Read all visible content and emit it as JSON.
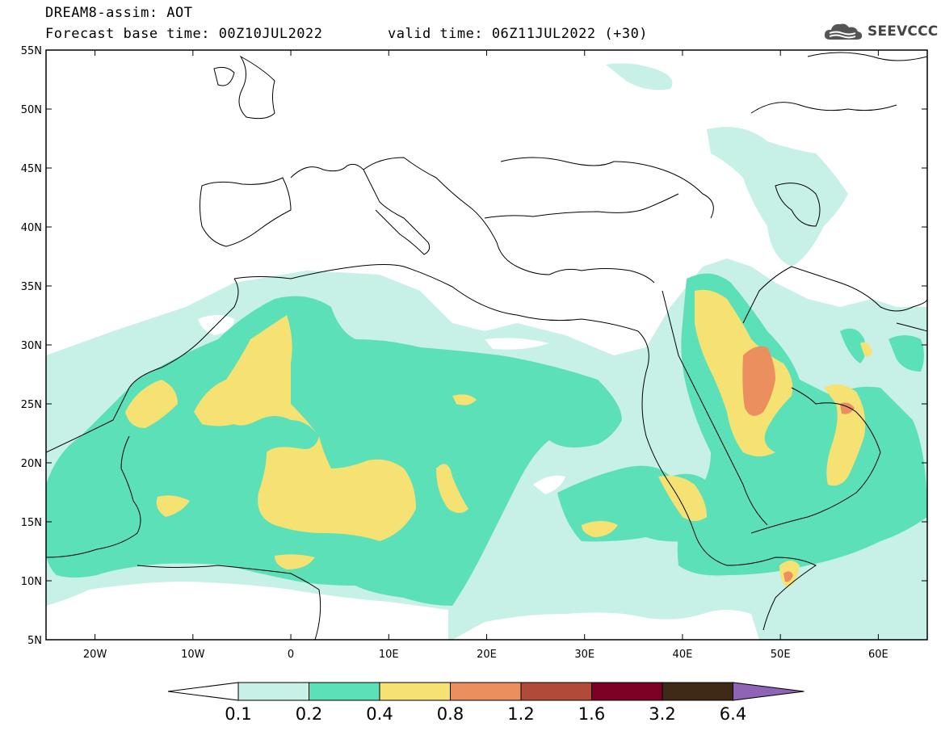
{
  "header": {
    "title": "DREAM8-assim: AOT",
    "base_time": "Forecast base time: 00Z10JUL2022",
    "valid_time": "valid time: 06Z11JUL2022 (+30)"
  },
  "logo": {
    "text": "SEEVCCC",
    "icon": "cloud-logo-icon"
  },
  "map": {
    "lon_range": [
      -25,
      65
    ],
    "lat_range": [
      5,
      55
    ],
    "lat_labels": [
      "55N",
      "50N",
      "45N",
      "40N",
      "35N",
      "30N",
      "25N",
      "20N",
      "15N",
      "10N",
      "5N"
    ],
    "lon_labels": [
      "20W",
      "10W",
      "0",
      "10E",
      "20E",
      "30E",
      "40E",
      "50E",
      "60E"
    ]
  },
  "colorbar": {
    "labels": [
      "0.1",
      "0.2",
      "0.4",
      "0.8",
      "1.2",
      "1.6",
      "3.2",
      "6.4"
    ],
    "colors": [
      "#ffffff",
      "#c7f0e6",
      "#5ce0b8",
      "#f5e272",
      "#eb8f5f",
      "#b24a3a",
      "#7d0025",
      "#3f2a17",
      "#8f63b5"
    ]
  }
}
